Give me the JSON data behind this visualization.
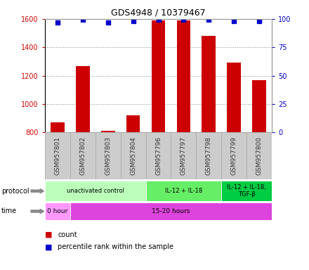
{
  "title": "GDS4948 / 10379467",
  "samples": [
    "GSM957801",
    "GSM957802",
    "GSM957803",
    "GSM957804",
    "GSM957796",
    "GSM957797",
    "GSM957798",
    "GSM957799",
    "GSM957800"
  ],
  "counts": [
    870,
    1265,
    810,
    920,
    1590,
    1590,
    1480,
    1290,
    1170
  ],
  "percentile_ranks": [
    97,
    99,
    97,
    98,
    99,
    99,
    99,
    98,
    98
  ],
  "ylim_left": [
    800,
    1600
  ],
  "ylim_right": [
    0,
    100
  ],
  "yticks_left": [
    800,
    1000,
    1200,
    1400,
    1600
  ],
  "yticks_right": [
    0,
    25,
    50,
    75,
    100
  ],
  "bar_color": "#cc0000",
  "dot_color": "#0000cc",
  "bar_bottom": 800,
  "tick_bg_color": "#cccccc",
  "protocol_groups": [
    {
      "label": "unactivated control",
      "start": 0,
      "end": 4,
      "color": "#bbffbb"
    },
    {
      "label": "IL-12 + IL-18",
      "start": 4,
      "end": 7,
      "color": "#66ee66"
    },
    {
      "label": "IL-12 + IL-18,\nTGF-β",
      "start": 7,
      "end": 9,
      "color": "#00cc44"
    }
  ],
  "time_groups": [
    {
      "label": "0 hour",
      "start": 0,
      "end": 1,
      "color": "#ff99ff"
    },
    {
      "label": "15-20 hours",
      "start": 1,
      "end": 9,
      "color": "#dd44dd"
    }
  ],
  "left_axis_color": "#cc0000",
  "right_axis_color": "#0000cc",
  "grid_color": "#888888",
  "bg_color": "#ffffff"
}
